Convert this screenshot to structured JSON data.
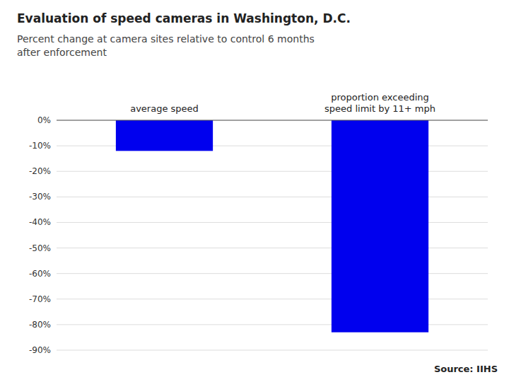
{
  "chart_data": {
    "type": "bar",
    "title": "Evaluation of speed cameras in Washington, D.C.",
    "subtitle": "Percent change at camera sites relative to control 6 months\nafter enforcement",
    "categories": [
      "average speed",
      "proportion exceeding\nspeed limit by 11+ mph"
    ],
    "values": [
      -12,
      -83
    ],
    "color": "#0000EE",
    "ylim": [
      -90,
      0
    ],
    "yticks": [
      {
        "value": 0,
        "label": "0%"
      },
      {
        "value": -10,
        "label": "-10%"
      },
      {
        "value": -20,
        "label": "-20%"
      },
      {
        "value": -30,
        "label": "-30%"
      },
      {
        "value": -40,
        "label": "-40%"
      },
      {
        "value": -50,
        "label": "-50%"
      },
      {
        "value": -60,
        "label": "-60%"
      },
      {
        "value": -70,
        "label": "-70%"
      },
      {
        "value": -80,
        "label": "-80%"
      },
      {
        "value": -90,
        "label": "-90%"
      }
    ],
    "grid": true,
    "source": "Source: IIHS"
  }
}
